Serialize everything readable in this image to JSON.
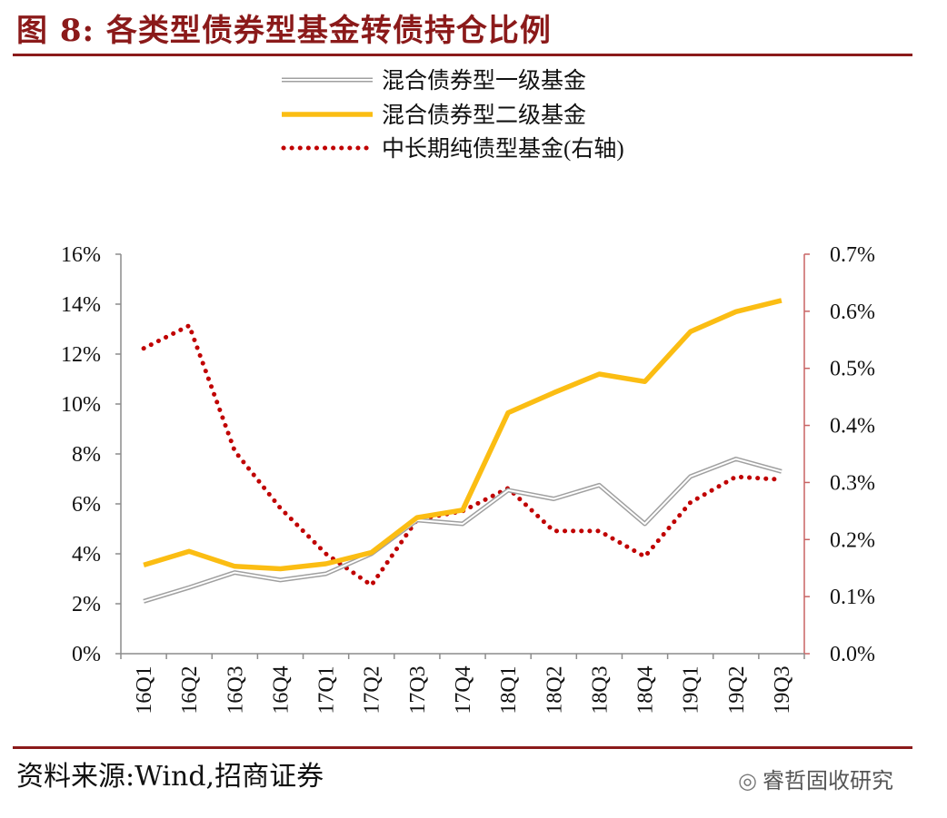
{
  "figure": {
    "title": "图 8:  各类型债券型基金转债持仓比例",
    "source": "资料来源:Wind,招商证券",
    "watermark": "睿哲固收研究",
    "watermark_icon": "wechat-icon"
  },
  "colors": {
    "brand": "#8b1a1a",
    "series_gray": "#a0a0a0",
    "series_yellow": "#fbbd13",
    "series_red": "#c00000",
    "axis": "#8c8c8c",
    "right_axis": "#c86464"
  },
  "chart_data": {
    "type": "line",
    "title": "",
    "xlabel": "",
    "ylabel": "",
    "categories": [
      "16Q1",
      "16Q2",
      "16Q3",
      "16Q4",
      "17Q1",
      "17Q2",
      "17Q3",
      "17Q4",
      "18Q1",
      "18Q2",
      "18Q3",
      "18Q4",
      "19Q1",
      "19Q2",
      "19Q3"
    ],
    "ylim": [
      0,
      16
    ],
    "yticks": [
      0,
      2,
      4,
      6,
      8,
      10,
      12,
      14,
      16
    ],
    "ytick_labels": [
      "0%",
      "2%",
      "4%",
      "6%",
      "8%",
      "10%",
      "12%",
      "14%",
      "16%"
    ],
    "y2lim": [
      0,
      0.7
    ],
    "y2ticks": [
      0,
      0.1,
      0.2,
      0.3,
      0.4,
      0.5,
      0.6,
      0.7
    ],
    "y2tick_labels": [
      "0.0%",
      "0.1%",
      "0.2%",
      "0.3%",
      "0.4%",
      "0.5%",
      "0.6%",
      "0.7%"
    ],
    "grid": false,
    "legend_position": "top-center",
    "series": [
      {
        "name": "混合债券型一级基金",
        "axis": "left",
        "style": "double",
        "values": [
          2.1,
          2.65,
          3.25,
          2.95,
          3.2,
          4.0,
          5.35,
          5.2,
          6.55,
          6.2,
          6.75,
          5.2,
          7.1,
          7.8,
          7.3
        ]
      },
      {
        "name": "混合债券型二级基金",
        "axis": "left",
        "style": "solid",
        "values": [
          3.55,
          4.1,
          3.5,
          3.4,
          3.6,
          4.05,
          5.45,
          5.75,
          9.65,
          10.45,
          11.2,
          10.9,
          12.9,
          13.7,
          14.15
        ]
      },
      {
        "name": "中长期纯债型基金(右轴)",
        "axis": "right",
        "style": "dotted",
        "values": [
          0.535,
          0.575,
          0.355,
          0.255,
          0.175,
          0.12,
          0.235,
          0.25,
          0.29,
          0.215,
          0.215,
          0.17,
          0.265,
          0.31,
          0.305
        ]
      }
    ]
  }
}
